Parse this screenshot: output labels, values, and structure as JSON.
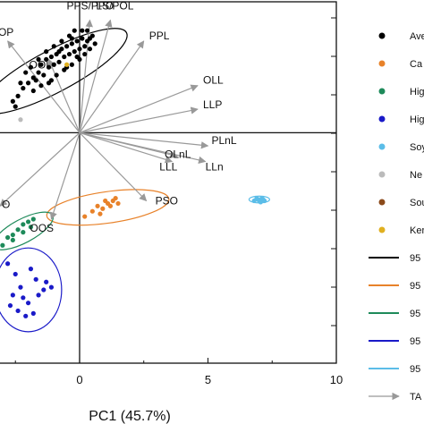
{
  "chart_data": {
    "type": "scatter",
    "xlabel": "PC1 (45.7%)",
    "ylabel": "",
    "xlim": [
      -3.1,
      10
    ],
    "ylim": [
      -8.8,
      5.0
    ],
    "x_ticks": [
      0,
      5,
      10
    ],
    "grid": false,
    "legend_position": "right",
    "series": [
      {
        "name": "Ave",
        "color": "#000000",
        "points": [
          [
            -2.6,
            1.2
          ],
          [
            -2.4,
            1.4
          ],
          [
            -2.2,
            1.7
          ],
          [
            -2.0,
            1.9
          ],
          [
            -1.8,
            2.1
          ],
          [
            -1.6,
            2.3
          ],
          [
            -1.5,
            2.6
          ],
          [
            -1.3,
            2.8
          ],
          [
            -1.1,
            2.9
          ],
          [
            -0.9,
            3.0
          ],
          [
            -0.7,
            3.2
          ],
          [
            -0.5,
            3.3
          ],
          [
            -0.3,
            3.4
          ],
          [
            -0.1,
            3.5
          ],
          [
            0.1,
            3.6
          ],
          [
            0.3,
            3.5
          ],
          [
            0.5,
            3.7
          ],
          [
            -2.3,
            1.9
          ],
          [
            -2.1,
            2.3
          ],
          [
            -1.9,
            2.5
          ],
          [
            -1.7,
            2.0
          ],
          [
            -1.4,
            2.2
          ],
          [
            -1.2,
            2.5
          ],
          [
            -1.0,
            2.6
          ],
          [
            -0.8,
            2.7
          ],
          [
            -0.6,
            2.9
          ],
          [
            -0.4,
            3.0
          ],
          [
            -0.2,
            3.1
          ],
          [
            0.0,
            3.2
          ],
          [
            0.2,
            3.3
          ],
          [
            0.4,
            3.2
          ],
          [
            0.6,
            3.4
          ],
          [
            -1.6,
            2.8
          ],
          [
            -1.3,
            3.1
          ],
          [
            -1.0,
            3.3
          ],
          [
            -0.7,
            3.5
          ],
          [
            -0.4,
            3.7
          ],
          [
            -0.2,
            3.9
          ],
          [
            0.1,
            3.9
          ],
          [
            0.3,
            3.9
          ],
          [
            -1.5,
            1.8
          ],
          [
            -1.2,
            1.9
          ],
          [
            -0.9,
            2.2
          ],
          [
            -0.6,
            2.4
          ],
          [
            -0.3,
            2.6
          ],
          [
            0.0,
            2.8
          ],
          [
            0.2,
            3.0
          ],
          [
            -2.5,
            1.0
          ],
          [
            -1.8,
            1.6
          ],
          [
            -1.1,
            2.0
          ],
          [
            -0.5,
            2.5
          ],
          [
            -0.1,
            2.9
          ],
          [
            0.4,
            3.6
          ],
          [
            -0.8,
            3.1
          ],
          [
            -0.3,
            3.6
          ]
        ]
      },
      {
        "name": "Ca",
        "color": "#E8822A",
        "points": [
          [
            0.2,
            -3.2
          ],
          [
            0.5,
            -3.0
          ],
          [
            0.7,
            -2.8
          ],
          [
            0.9,
            -2.9
          ],
          [
            1.1,
            -2.7
          ],
          [
            1.2,
            -2.8
          ],
          [
            1.3,
            -2.6
          ],
          [
            1.5,
            -2.7
          ],
          [
            0.8,
            -3.1
          ],
          [
            1.0,
            -2.6
          ],
          [
            1.4,
            -2.5
          ]
        ]
      },
      {
        "name": "Hig",
        "color": "#1E8A5A",
        "points": [
          [
            -3.0,
            -4.3
          ],
          [
            -2.8,
            -4.0
          ],
          [
            -2.6,
            -3.9
          ],
          [
            -2.4,
            -3.7
          ],
          [
            -2.2,
            -3.5
          ],
          [
            -2.0,
            -3.4
          ],
          [
            -1.8,
            -3.3
          ],
          [
            -2.6,
            -4.1
          ],
          [
            -2.2,
            -3.8
          ],
          [
            -1.9,
            -3.6
          ]
        ]
      },
      {
        "name": "Hig",
        "color": "#1A1AC8",
        "points": [
          [
            -2.7,
            -6.6
          ],
          [
            -2.4,
            -6.8
          ],
          [
            -2.2,
            -6.3
          ],
          [
            -2.0,
            -6.5
          ],
          [
            -1.8,
            -6.9
          ],
          [
            -1.6,
            -6.2
          ],
          [
            -1.4,
            -6.0
          ],
          [
            -1.7,
            -5.6
          ],
          [
            -2.5,
            -5.4
          ],
          [
            -2.3,
            -5.9
          ],
          [
            -1.9,
            -5.2
          ],
          [
            -2.8,
            -5.0
          ],
          [
            -2.6,
            -6.2
          ],
          [
            -1.3,
            -5.7
          ],
          [
            -1.1,
            -5.9
          ],
          [
            -2.1,
            -7.0
          ]
        ]
      },
      {
        "name": "Soy",
        "color": "#5BBDE8",
        "points": [
          [
            6.8,
            -2.6
          ],
          [
            6.9,
            -2.5
          ],
          [
            7.0,
            -2.6
          ],
          [
            7.1,
            -2.5
          ],
          [
            7.2,
            -2.6
          ],
          [
            6.95,
            -2.55
          ],
          [
            7.05,
            -2.65
          ],
          [
            7.15,
            -2.55
          ]
        ]
      },
      {
        "name": "Ne",
        "color": "#BBBBBB",
        "points": [
          [
            -2.3,
            0.5
          ]
        ]
      },
      {
        "name": "Sou",
        "color": "#8B4A1A",
        "points": []
      },
      {
        "name": "Ker",
        "color": "#E0B020",
        "points": [
          [
            -0.5,
            2.6
          ]
        ]
      }
    ],
    "ellipses": [
      {
        "name": "95",
        "color": "#000000",
        "cx": -1.0,
        "cy": 2.35,
        "rx": 3.2,
        "ry": 0.8,
        "angle": 28
      },
      {
        "name": "95",
        "color": "#E8822A",
        "cx": 1.1,
        "cy": -2.85,
        "rx": 2.4,
        "ry": 0.6,
        "angle": 8
      },
      {
        "name": "95",
        "color": "#1E8A5A",
        "cx": -2.2,
        "cy": -3.75,
        "rx": 1.3,
        "ry": 0.45,
        "angle": 28
      },
      {
        "name": "95",
        "color": "#1A1AC8",
        "cx": -2.0,
        "cy": -6.0,
        "rx": 1.3,
        "ry": 1.6,
        "angle": 0
      },
      {
        "name": "95",
        "color": "#5BBDE8",
        "cx": 7.0,
        "cy": -2.55,
        "rx": 0.4,
        "ry": 0.13,
        "angle": 0
      }
    ],
    "loadings": [
      {
        "label": "OOP",
        "x": -2.8,
        "y": 3.5
      },
      {
        "label": "OOL",
        "x": -1.2,
        "y": 2.8
      },
      {
        "label": "PPS/PPO",
        "x": 0.4,
        "y": 4.3
      },
      {
        "label": "LS/POL",
        "x": 1.2,
        "y": 4.3
      },
      {
        "label": "PPL",
        "x": 2.5,
        "y": 3.5
      },
      {
        "label": "OLL",
        "x": 4.6,
        "y": 1.8
      },
      {
        "label": "LLP",
        "x": 4.6,
        "y": 0.9
      },
      {
        "label": "PLnL",
        "x": 5.0,
        "y": -0.5
      },
      {
        "label": "OLnL",
        "x": 3.8,
        "y": -0.9
      },
      {
        "label": "LLn",
        "x": 4.9,
        "y": -1.1
      },
      {
        "label": "LLL",
        "x": 3.6,
        "y": -1.1
      },
      {
        "label": "PSO",
        "x": 2.6,
        "y": -2.6
      },
      {
        "label": "OOS",
        "x": -1.1,
        "y": -3.3
      },
      {
        "label": "O",
        "x": -3.1,
        "y": -2.8
      }
    ],
    "legend": [
      {
        "label": "Ave",
        "kind": "dot",
        "color": "#000000"
      },
      {
        "label": "Ca",
        "kind": "dot",
        "color": "#E8822A"
      },
      {
        "label": "Hig",
        "kind": "dot",
        "color": "#1E8A5A"
      },
      {
        "label": "Hig",
        "kind": "dot",
        "color": "#1A1AC8"
      },
      {
        "label": "Soy",
        "kind": "dot",
        "color": "#5BBDE8"
      },
      {
        "label": "Ne",
        "kind": "dot",
        "color": "#BBBBBB"
      },
      {
        "label": "Sou",
        "kind": "dot",
        "color": "#8B4A1A"
      },
      {
        "label": "Ker",
        "kind": "dot",
        "color": "#E0B020"
      },
      {
        "label": "95",
        "kind": "line",
        "color": "#000000"
      },
      {
        "label": "95",
        "kind": "line",
        "color": "#E8822A"
      },
      {
        "label": "95",
        "kind": "line",
        "color": "#1E8A5A"
      },
      {
        "label": "95",
        "kind": "line",
        "color": "#1A1AC8"
      },
      {
        "label": "95",
        "kind": "line",
        "color": "#5BBDE8"
      },
      {
        "label": "TA",
        "kind": "arrow",
        "color": "#999999"
      }
    ]
  }
}
